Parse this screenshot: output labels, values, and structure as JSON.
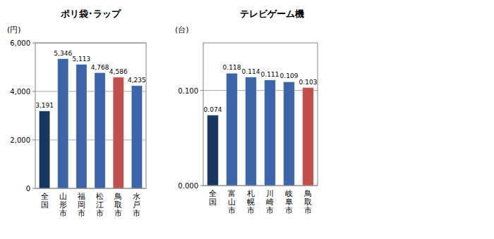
{
  "chart_data": [
    {
      "type": "bar",
      "title": "ポリ袋･ラップ",
      "ylabel": "(円)",
      "categories": [
        "全国",
        "山形市",
        "福岡市",
        "松江市",
        "鳥取市",
        "水戸市"
      ],
      "values": [
        3191,
        5346,
        5113,
        4768,
        4586,
        4235
      ],
      "value_labels": [
        "3,191",
        "5,346",
        "5,113",
        "4,768",
        "4,586",
        "4,235"
      ],
      "colors": [
        "#17375e",
        "#3c64a8",
        "#3c64a8",
        "#3c64a8",
        "#c0504d",
        "#3c64a8"
      ],
      "ylim": [
        0,
        6000
      ],
      "yticks": [
        0,
        {
          "value": 2000,
          "label": "2,000"
        },
        {
          "value": 4000,
          "label": "4,000"
        },
        {
          "value": 6000,
          "label": "6,000"
        }
      ],
      "grid": true,
      "data_labels": true
    },
    {
      "type": "bar",
      "title": "テレビゲーム機",
      "ylabel": "(台)",
      "categories": [
        "全国",
        "富山市",
        "札幌市",
        "川崎市",
        "岐阜市",
        "鳥取市"
      ],
      "values": [
        0.074,
        0.118,
        0.114,
        0.111,
        0.109,
        0.103
      ],
      "colors": [
        "#17375e",
        "#3c64a8",
        "#3c64a8",
        "#3c64a8",
        "#3c64a8",
        "#c0504d"
      ],
      "ylim": [
        0,
        0.15
      ],
      "yticks": [
        {
          "value": 0,
          "label": "0.000"
        },
        {
          "value": 0.1,
          "label": "0.100"
        }
      ],
      "grid": true,
      "data_labels": true
    }
  ]
}
